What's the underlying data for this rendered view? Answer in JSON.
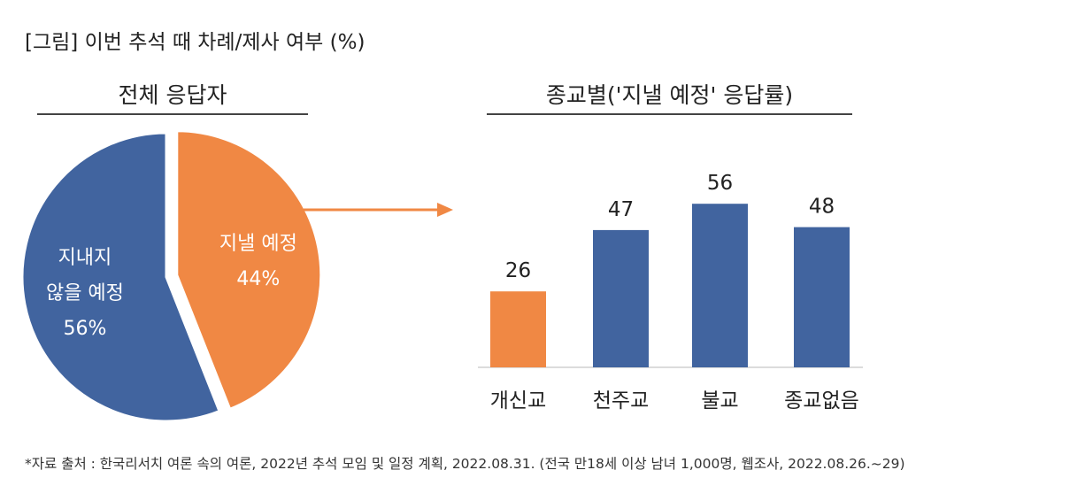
{
  "title": "[그림] 이번 추석 때 차례/제사 여부 (%)",
  "footnote": "*자료 출처 : 한국리서치 여론 속의 여론, 2022년 추석 모임 및 일정 계획, 2022.08.31. (전국 만18세 이상 남녀 1,000명, 웹조사, 2022.08.26.~29)",
  "colors": {
    "orange": "#F08844",
    "blue": "#41649F",
    "rule": "#444444"
  },
  "chart_data": [
    {
      "type": "pie",
      "title": "전체 응답자",
      "slices": [
        {
          "label_line1": "지낼 예정",
          "label_line2": "",
          "value": 44,
          "value_label": "44%",
          "color": "#F08844"
        },
        {
          "label_line1": "지내지",
          "label_line2": "않을 예정",
          "value": 56,
          "value_label": "56%",
          "color": "#41649F"
        }
      ]
    },
    {
      "type": "bar",
      "title": "종교별('지낼 예정' 응답률)",
      "categories": [
        "개신교",
        "천주교",
        "불교",
        "종교없음"
      ],
      "values": [
        26,
        47,
        56,
        48
      ],
      "colors": [
        "#F08844",
        "#41649F",
        "#41649F",
        "#41649F"
      ],
      "ylim": [
        0,
        60
      ]
    }
  ]
}
